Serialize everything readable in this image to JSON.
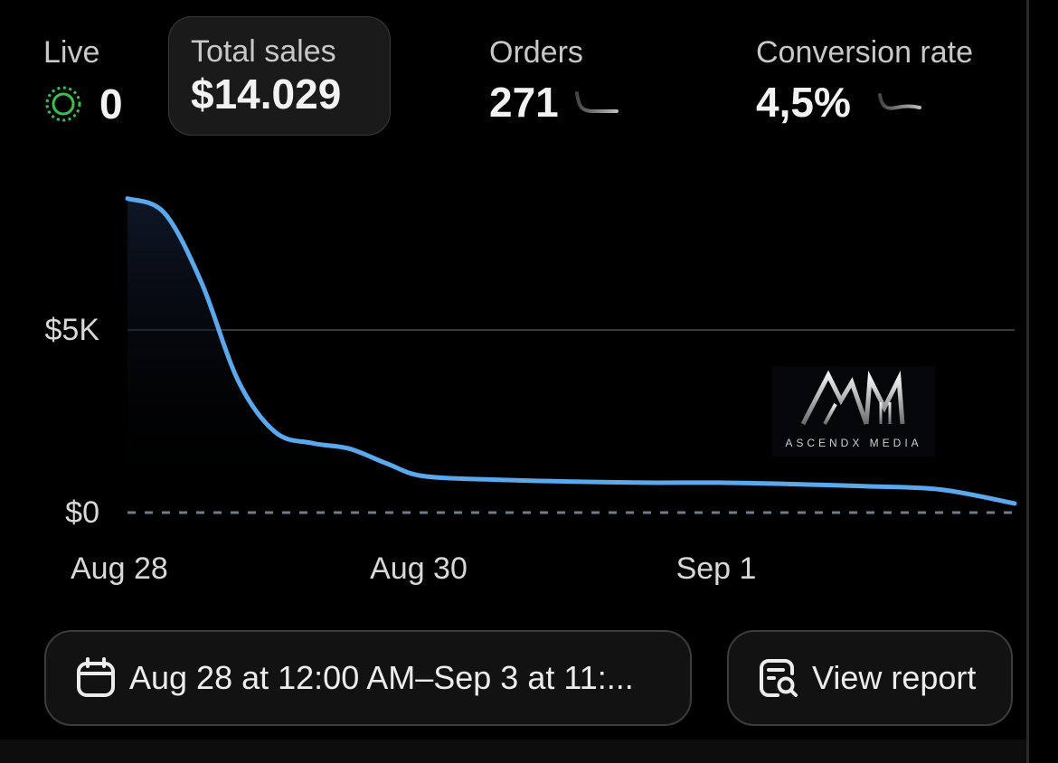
{
  "metrics": {
    "live": {
      "label": "Live",
      "value": "0"
    },
    "total_sales": {
      "label": "Total sales",
      "value": "$14.029"
    },
    "orders": {
      "label": "Orders",
      "value": "271"
    },
    "conversion_rate": {
      "label": "Conversion rate",
      "value": "4,5%"
    }
  },
  "colors": {
    "line": "#5aa8ee",
    "live_indicator": "#37c14f",
    "background": "#000000"
  },
  "chart_data": {
    "type": "line",
    "title": "",
    "xlabel": "",
    "ylabel": "",
    "x_tick_labels": [
      "Aug 28",
      "Aug 30",
      "Sep 1"
    ],
    "y_tick_labels": [
      "$5K",
      "$0"
    ],
    "ylim": [
      0,
      9000
    ],
    "x": [
      0,
      0.25,
      0.5,
      0.75,
      1.0,
      1.25,
      1.5,
      1.75,
      2.0,
      2.5,
      3.0,
      3.5,
      4.0,
      4.5,
      5.0,
      5.5,
      6.0
    ],
    "series": [
      {
        "values": [
          8600,
          8200,
          6300,
          3600,
          2200,
          1900,
          1750,
          1350,
          1000,
          900,
          850,
          820,
          820,
          780,
          720,
          630,
          250
        ]
      }
    ],
    "grid": true
  },
  "watermark": {
    "text": "ASCENDX MEDIA"
  },
  "actions": {
    "date_range": "Aug 28 at 12:00 AM–Sep 3 at 11:...",
    "view_report": "View report"
  },
  "icons": {
    "live": "live-pulse-icon",
    "date": "calendar-icon",
    "report": "report-search-icon"
  }
}
